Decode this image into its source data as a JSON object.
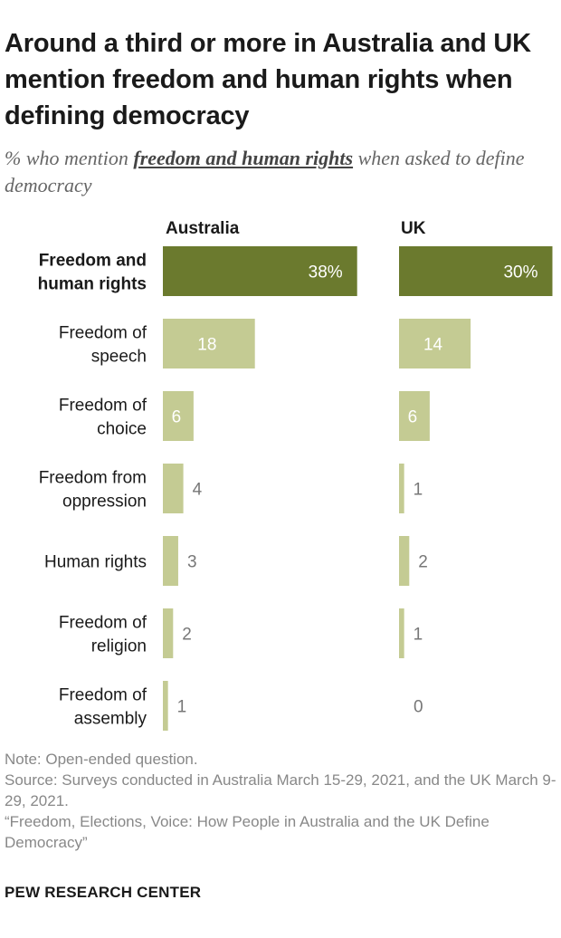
{
  "title": "Around a third or more in Australia and UK mention freedom and human rights when defining democracy",
  "subtitle": {
    "prefix": "% who mention ",
    "emphasis": "freedom and human rights",
    "suffix": " when asked to define democracy"
  },
  "colors": {
    "highlight": "#6b7a2e",
    "light": "#c4cb93",
    "label_inside_light": "#ffffff",
    "label_outside": "#777777"
  },
  "chart_data": {
    "type": "bar",
    "orientation": "horizontal",
    "categories": [
      "Freedom and\nhuman rights",
      "Freedom of\nspeech",
      "Freedom of\nchoice",
      "Freedom from\noppression",
      "Human rights",
      "Freedom of\nreligion",
      "Freedom of\nassembly"
    ],
    "series": [
      {
        "name": "Australia",
        "values": [
          38,
          18,
          6,
          4,
          3,
          2,
          1
        ],
        "labels": [
          "38%",
          "18",
          "6",
          "4",
          "3",
          "2",
          "1"
        ]
      },
      {
        "name": "UK",
        "values": [
          30,
          14,
          6,
          1,
          2,
          1,
          0
        ],
        "labels": [
          "30%",
          "14",
          "6",
          "1",
          "2",
          "1",
          "0"
        ]
      }
    ],
    "highlight_category_index": 0
  },
  "notes": {
    "note": "Note: Open-ended question.",
    "source": "Source: Surveys conducted in Australia March 15-29, 2021, and the UK March 9-29, 2021.",
    "report": "“Freedom, Elections, Voice: How People in Australia and the UK Define Democracy”"
  },
  "brand": "PEW RESEARCH CENTER"
}
